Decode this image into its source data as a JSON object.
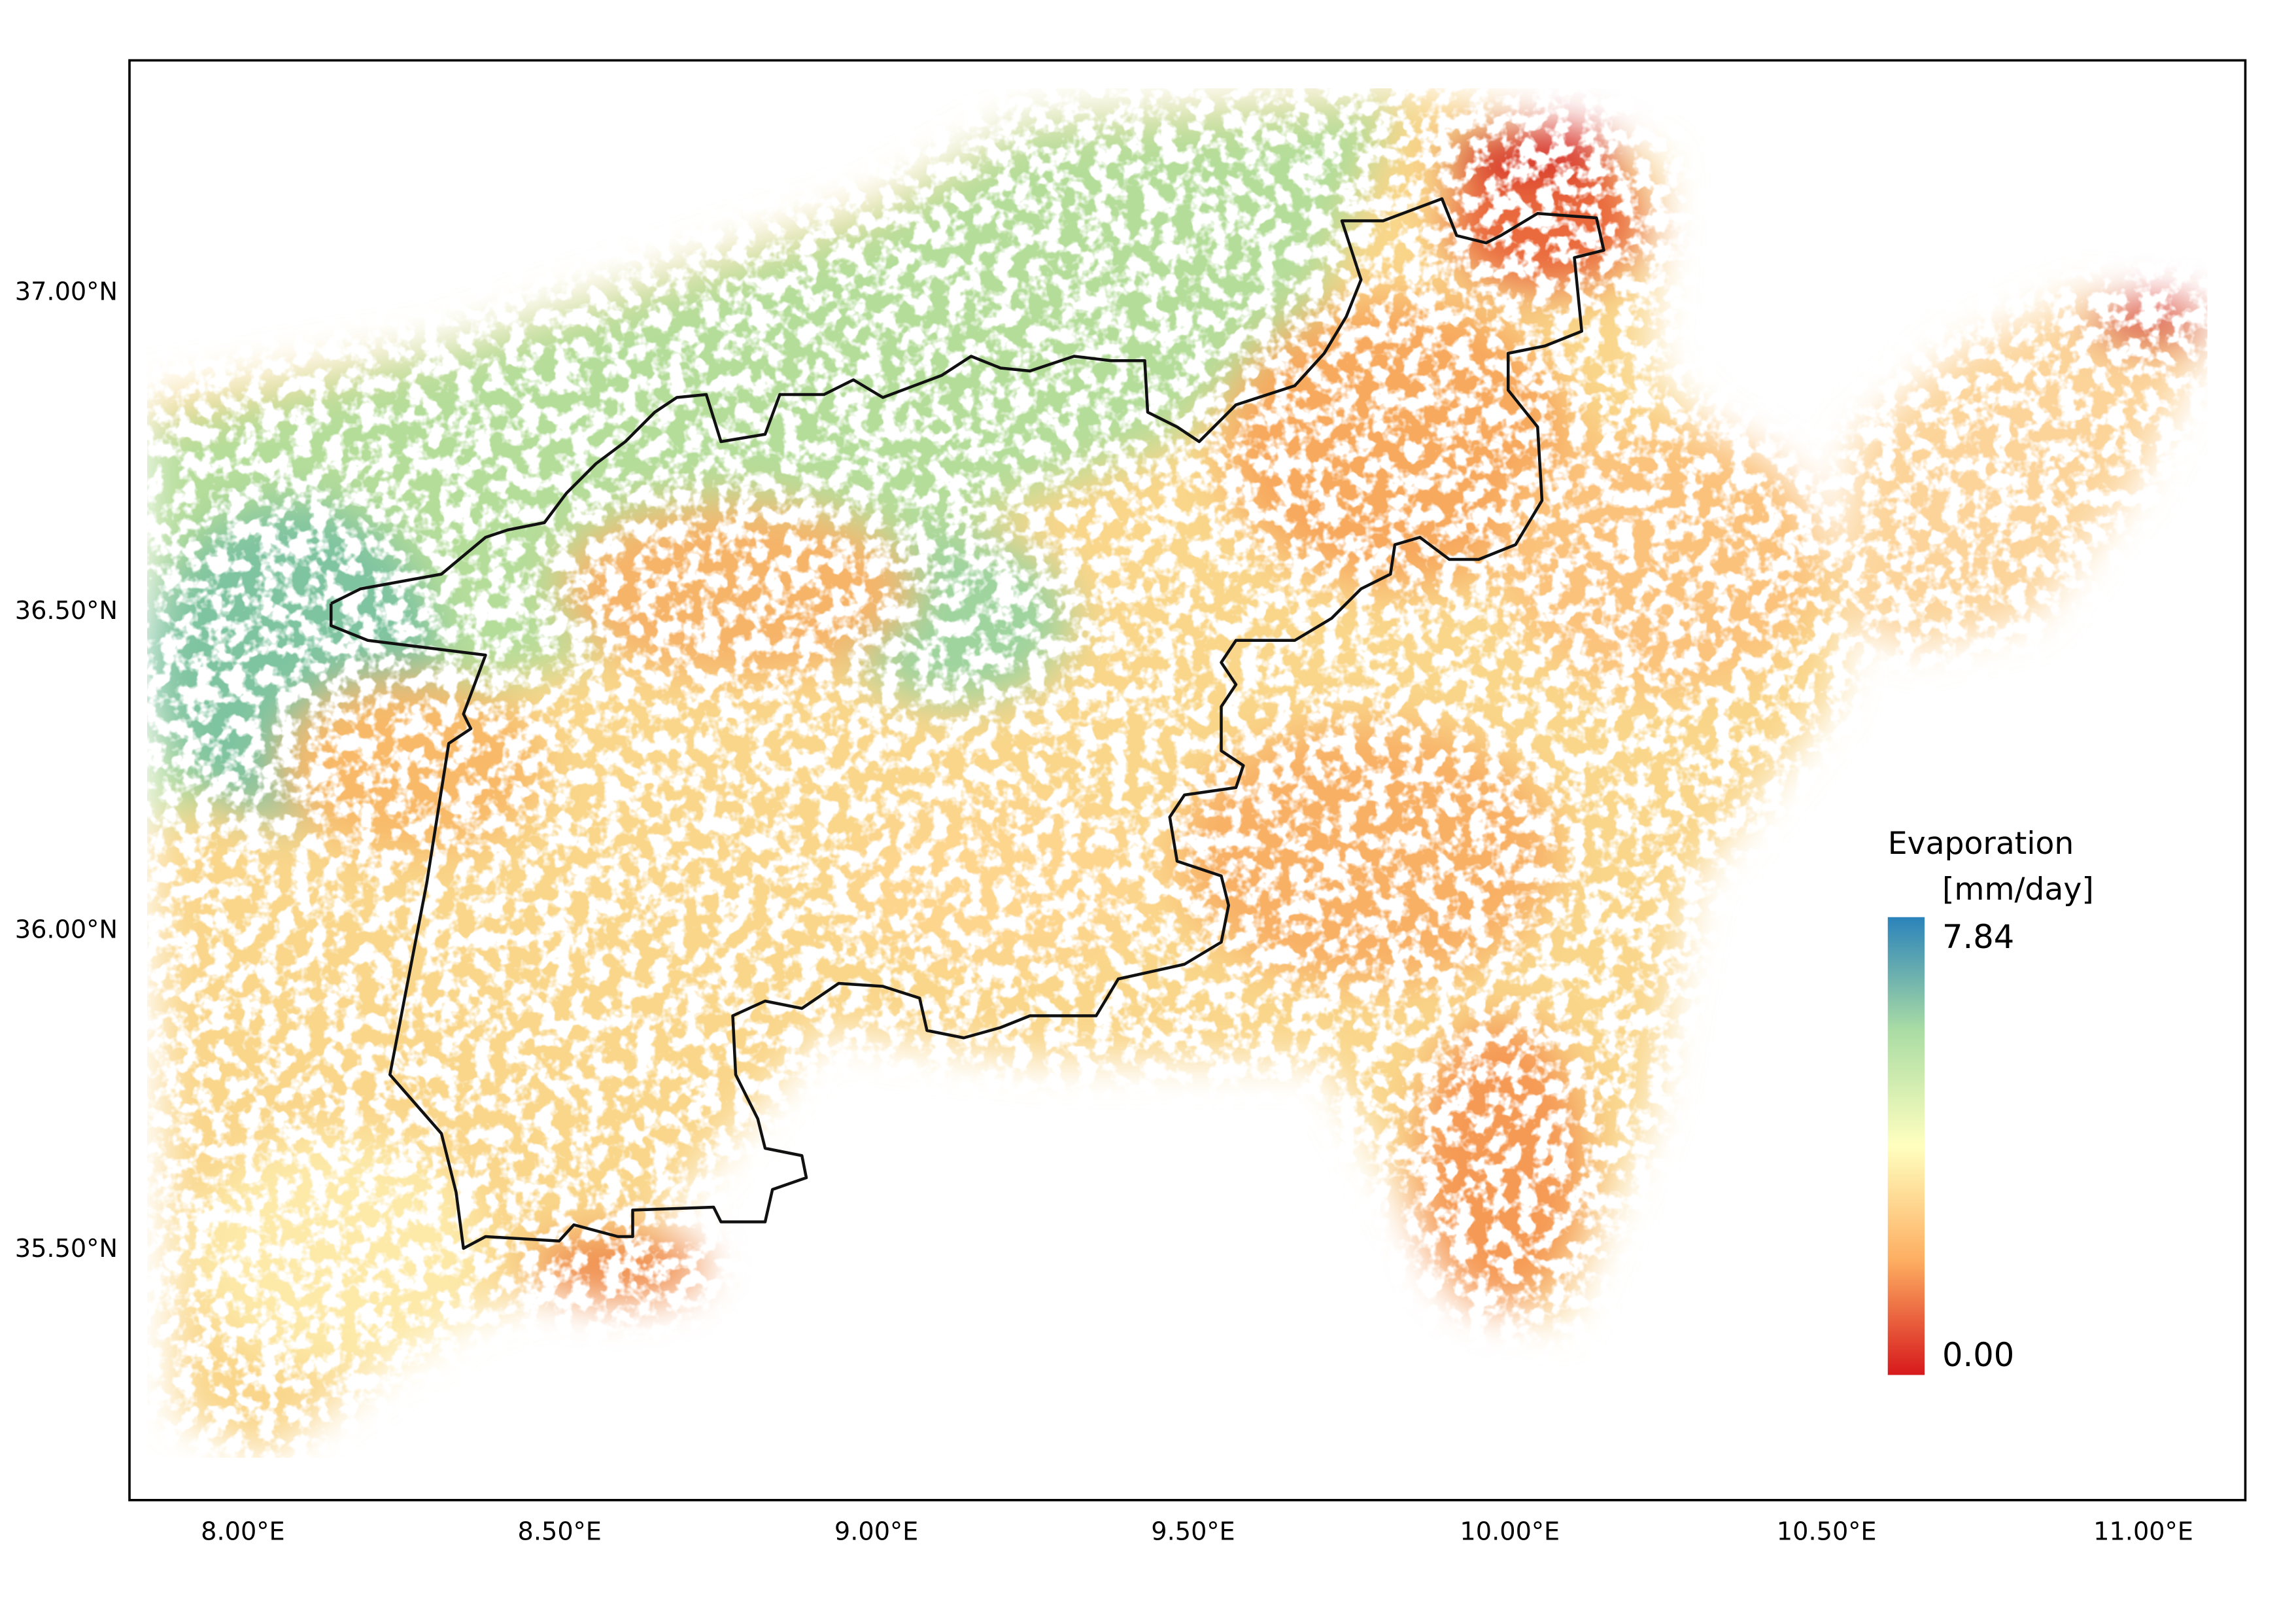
{
  "map": {
    "xlim": [
      7.821,
      11.161
    ],
    "ylim": [
      35.105,
      37.362
    ],
    "xticks": [
      {
        "value": 8,
        "label": "8.00°E"
      },
      {
        "value": 8.5,
        "label": "8.50°E"
      },
      {
        "value": 9,
        "label": "9.00°E"
      },
      {
        "value": 9.5,
        "label": "9.50°E"
      },
      {
        "value": 10,
        "label": "10.00°E"
      },
      {
        "value": 10.5,
        "label": "10.50°E"
      },
      {
        "value": 11,
        "label": "11.00°E"
      }
    ],
    "yticks": [
      {
        "value": 35.5,
        "label": "35.50°N"
      },
      {
        "value": 36,
        "label": "36.00°N"
      },
      {
        "value": 36.5,
        "label": "36.50°N"
      },
      {
        "value": 37,
        "label": "37.00°N"
      }
    ],
    "colorbar": {
      "title": "Evaporation",
      "unit": "[mm/day]",
      "ticks": [
        {
          "value": 0,
          "label": "0.00"
        },
        7.84
      ],
      "colors": [
        "#d7191c",
        "#fdae61",
        "#ffffbf",
        "#abdda4",
        "#2b83ba"
      ]
    }
  }
}
